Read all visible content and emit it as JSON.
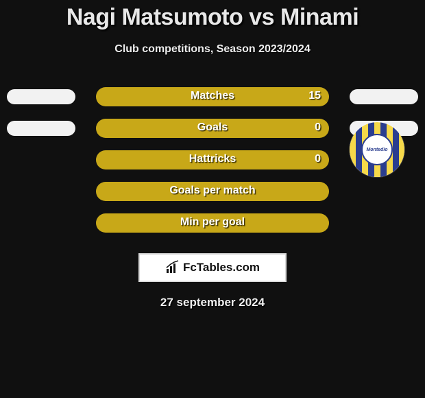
{
  "title": "Nagi Matsumoto vs Minami",
  "subtitle": "Club competitions, Season 2023/2024",
  "rows": [
    {
      "label": "Matches",
      "value_right": "15",
      "show_sides": true
    },
    {
      "label": "Goals",
      "value_right": "0",
      "show_sides": true
    },
    {
      "label": "Hattricks",
      "value_right": "0",
      "show_sides": false
    },
    {
      "label": "Goals per match",
      "value_right": "",
      "show_sides": false
    },
    {
      "label": "Min per goal",
      "value_right": "",
      "show_sides": false
    }
  ],
  "colors": {
    "center_pill": "#c8a818",
    "side_pill": "#f2f2f2",
    "background": "#101010"
  },
  "club": {
    "name": "Montedio",
    "stripe_a": "#f6d94a",
    "stripe_b": "#2a3d8f"
  },
  "footer_brand": "FcTables.com",
  "date": "27 september 2024"
}
